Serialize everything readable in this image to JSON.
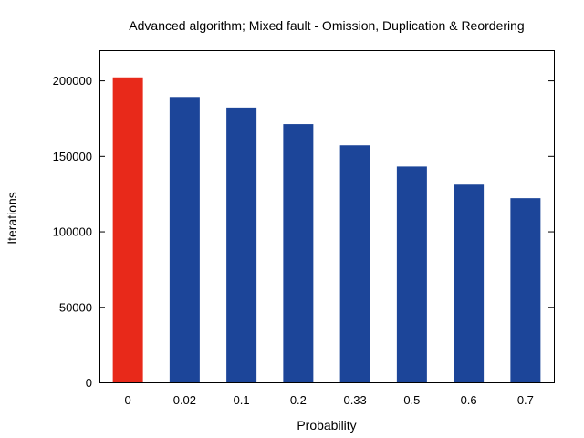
{
  "chart_data": {
    "type": "bar",
    "title": "Advanced algorithm; Mixed fault - Omission, Duplication & Reordering",
    "xlabel": "Probability",
    "ylabel": "Iterations",
    "categories": [
      "0",
      "0.02",
      "0.1",
      "0.2",
      "0.33",
      "0.5",
      "0.6",
      "0.7"
    ],
    "values": [
      202000,
      189000,
      182000,
      171000,
      157000,
      143000,
      131000,
      122000
    ],
    "bar_colors": [
      "#e8291a",
      "#1c4599",
      "#1c4599",
      "#1c4599",
      "#1c4599",
      "#1c4599",
      "#1c4599",
      "#1c4599"
    ],
    "ylim": [
      0,
      220000
    ],
    "yticks": [
      0,
      50000,
      100000,
      150000,
      200000
    ],
    "ytick_labels": [
      "0",
      "50000",
      "100000",
      "150000",
      "200000"
    ],
    "grid": false,
    "legend": "none"
  }
}
